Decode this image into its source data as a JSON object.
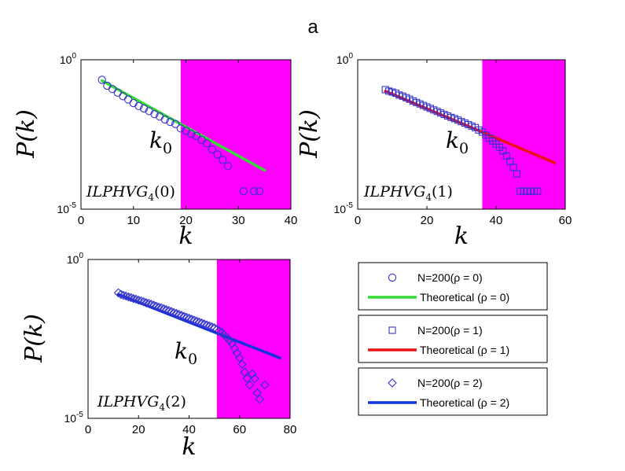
{
  "figure_label": "a",
  "chart_data": [
    {
      "type": "scatter",
      "name": "ILPHVG4(0)",
      "annotation_main": "ILPHVG",
      "annotation_sub": "4",
      "annotation_arg": "(0)",
      "threshold_label": "k",
      "threshold_sub": "0",
      "xlabel": "k",
      "ylabel": "P(k)",
      "xlim": [
        0,
        40
      ],
      "xticks": [
        "0",
        "10",
        "20",
        "30",
        "40"
      ],
      "ylim_log10": [
        -5,
        0
      ],
      "yticks": [
        {
          "base": "10",
          "exp": "0"
        },
        {
          "base": "10",
          "exp": "-5"
        }
      ],
      "shade_from": 19,
      "marker": "circle",
      "marker_color": "#3333cc",
      "line_color": "#33dd33",
      "points": [
        [
          4,
          -0.67
        ],
        [
          5,
          -0.87
        ],
        [
          6,
          -0.98
        ],
        [
          7,
          -1.1
        ],
        [
          8,
          -1.22
        ],
        [
          9,
          -1.33
        ],
        [
          10,
          -1.45
        ],
        [
          11,
          -1.55
        ],
        [
          12,
          -1.63
        ],
        [
          13,
          -1.72
        ],
        [
          14,
          -1.82
        ],
        [
          15,
          -1.9
        ],
        [
          16,
          -2.0
        ],
        [
          17,
          -2.08
        ],
        [
          18,
          -2.15
        ],
        [
          19,
          -2.3
        ],
        [
          20,
          -2.38
        ],
        [
          21,
          -2.48
        ],
        [
          22,
          -2.55
        ],
        [
          23,
          -2.68
        ],
        [
          24,
          -2.8
        ],
        [
          25,
          -3.0
        ],
        [
          26,
          -3.17
        ],
        [
          27,
          -3.35
        ],
        [
          28,
          -3.56
        ],
        [
          31,
          -4.4
        ],
        [
          33,
          -4.4
        ],
        [
          34,
          -4.4
        ]
      ],
      "line": [
        [
          4,
          -0.7
        ],
        [
          35,
          -3.7
        ]
      ]
    },
    {
      "type": "scatter",
      "name": "ILPHVG4(1)",
      "annotation_main": "ILPHVG",
      "annotation_sub": "4",
      "annotation_arg": "(1)",
      "threshold_label": "k",
      "threshold_sub": "0",
      "xlabel": "k",
      "ylabel": "P(k)",
      "xlim": [
        0,
        60
      ],
      "xticks": [
        "0",
        "20",
        "40",
        "60"
      ],
      "ylim_log10": [
        -5,
        0
      ],
      "yticks": [
        {
          "base": "10",
          "exp": "0"
        },
        {
          "base": "10",
          "exp": "-5"
        }
      ],
      "shade_from": 36,
      "marker": "square",
      "marker_color": "#3333cc",
      "line_color": "#ee1111",
      "points": [
        [
          8,
          -1.0
        ],
        [
          9,
          -1.05
        ],
        [
          10,
          -1.08
        ],
        [
          11,
          -1.12
        ],
        [
          12,
          -1.18
        ],
        [
          13,
          -1.22
        ],
        [
          14,
          -1.27
        ],
        [
          15,
          -1.32
        ],
        [
          16,
          -1.38
        ],
        [
          17,
          -1.43
        ],
        [
          18,
          -1.48
        ],
        [
          19,
          -1.53
        ],
        [
          20,
          -1.58
        ],
        [
          21,
          -1.63
        ],
        [
          22,
          -1.68
        ],
        [
          23,
          -1.73
        ],
        [
          24,
          -1.78
        ],
        [
          25,
          -1.83
        ],
        [
          26,
          -1.88
        ],
        [
          27,
          -1.93
        ],
        [
          28,
          -1.97
        ],
        [
          29,
          -2.02
        ],
        [
          30,
          -2.07
        ],
        [
          31,
          -2.12
        ],
        [
          32,
          -2.17
        ],
        [
          33,
          -2.22
        ],
        [
          34,
          -2.27
        ],
        [
          35,
          -2.35
        ],
        [
          36,
          -2.42
        ],
        [
          37,
          -2.52
        ],
        [
          38,
          -2.62
        ],
        [
          39,
          -2.72
        ],
        [
          40,
          -2.82
        ],
        [
          41,
          -2.93
        ],
        [
          42,
          -3.05
        ],
        [
          43,
          -3.22
        ],
        [
          44,
          -3.4
        ],
        [
          45,
          -3.6
        ],
        [
          46,
          -3.82
        ],
        [
          47,
          -4.4
        ],
        [
          48,
          -4.4
        ],
        [
          49,
          -4.4
        ],
        [
          50,
          -4.4
        ],
        [
          51,
          -4.4
        ],
        [
          52,
          -4.4
        ]
      ],
      "line": [
        [
          8,
          -1.05
        ],
        [
          57,
          -3.45
        ]
      ]
    },
    {
      "type": "scatter",
      "name": "ILPHVG4(2)",
      "annotation_main": "ILPHVG",
      "annotation_sub": "4",
      "annotation_arg": "(2)",
      "threshold_label": "k",
      "threshold_sub": "0",
      "xlabel": "k",
      "ylabel": "P(k)",
      "xlim": [
        0,
        80
      ],
      "xticks": [
        "0",
        "20",
        "40",
        "60",
        "80"
      ],
      "ylim_log10": [
        -5,
        0
      ],
      "yticks": [
        {
          "base": "10",
          "exp": "0"
        },
        {
          "base": "10",
          "exp": "-5"
        }
      ],
      "shade_from": 51,
      "marker": "diamond",
      "marker_color": "#3333cc",
      "line_color": "#1133dd",
      "points": [
        [
          12,
          -1.05
        ],
        [
          13,
          -1.1
        ],
        [
          14,
          -1.13
        ],
        [
          15,
          -1.15
        ],
        [
          16,
          -1.18
        ],
        [
          17,
          -1.2
        ],
        [
          18,
          -1.23
        ],
        [
          19,
          -1.25
        ],
        [
          20,
          -1.28
        ],
        [
          21,
          -1.3
        ],
        [
          22,
          -1.33
        ],
        [
          23,
          -1.36
        ],
        [
          24,
          -1.38
        ],
        [
          25,
          -1.41
        ],
        [
          26,
          -1.44
        ],
        [
          27,
          -1.47
        ],
        [
          28,
          -1.5
        ],
        [
          29,
          -1.52
        ],
        [
          30,
          -1.55
        ],
        [
          31,
          -1.58
        ],
        [
          32,
          -1.61
        ],
        [
          33,
          -1.64
        ],
        [
          34,
          -1.67
        ],
        [
          35,
          -1.7
        ],
        [
          36,
          -1.73
        ],
        [
          37,
          -1.76
        ],
        [
          38,
          -1.79
        ],
        [
          39,
          -1.82
        ],
        [
          40,
          -1.85
        ],
        [
          41,
          -1.88
        ],
        [
          42,
          -1.91
        ],
        [
          43,
          -1.94
        ],
        [
          44,
          -1.97
        ],
        [
          45,
          -2.0
        ],
        [
          46,
          -2.03
        ],
        [
          47,
          -2.06
        ],
        [
          48,
          -2.09
        ],
        [
          49,
          -2.12
        ],
        [
          50,
          -2.15
        ],
        [
          51,
          -2.2
        ],
        [
          52,
          -2.25
        ],
        [
          53,
          -2.3
        ],
        [
          54,
          -2.38
        ],
        [
          55,
          -2.45
        ],
        [
          56,
          -2.55
        ],
        [
          57,
          -2.65
        ],
        [
          58,
          -2.8
        ],
        [
          59,
          -2.95
        ],
        [
          60,
          -3.1
        ],
        [
          61,
          -3.3
        ],
        [
          62,
          -3.55
        ],
        [
          63,
          -3.75
        ],
        [
          64,
          -3.95
        ],
        [
          65,
          -3.6
        ],
        [
          66,
          -3.75
        ],
        [
          67,
          -4.2
        ],
        [
          68,
          -4.4
        ],
        [
          70,
          -3.95
        ]
      ],
      "line": [
        [
          12,
          -1.1
        ],
        [
          76,
          -3.1
        ]
      ]
    }
  ],
  "legend": [
    {
      "label": "N=200(ρ = 0)",
      "marker": "circle",
      "theory_label": "Theoretical (ρ = 0)",
      "line_color": "#33dd33"
    },
    {
      "label": "N=200(ρ = 1)",
      "marker": "square",
      "theory_label": "Theoretical (ρ = 1)",
      "line_color": "#ee1111"
    },
    {
      "label": "N=200(ρ = 2)",
      "marker": "diamond",
      "theory_label": "Theoretical (ρ = 2)",
      "line_color": "#1133dd"
    }
  ],
  "colors": {
    "shade": "#ff00ff",
    "marker": "#3333cc"
  }
}
